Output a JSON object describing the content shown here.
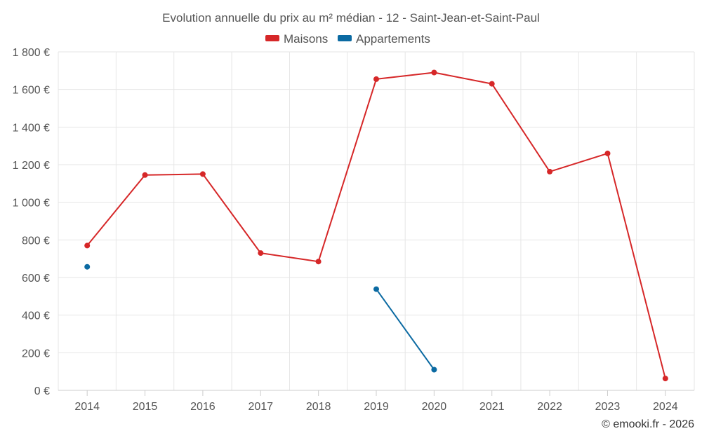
{
  "chart_data": {
    "type": "line",
    "title": "Evolution annuelle du prix au m² médian - 12 - Saint-Jean-et-Saint-Paul",
    "categories": [
      "2014",
      "2015",
      "2016",
      "2017",
      "2018",
      "2019",
      "2020",
      "2021",
      "2022",
      "2023",
      "2024"
    ],
    "series": [
      {
        "name": "Maisons",
        "color": "#d62728",
        "values": [
          770,
          1145,
          1150,
          730,
          685,
          1655,
          1690,
          1630,
          1163,
          1260,
          63
        ]
      },
      {
        "name": "Appartements",
        "color": "#0b6aa2",
        "values": [
          657,
          null,
          null,
          null,
          null,
          538,
          110,
          null,
          null,
          null,
          null
        ]
      }
    ],
    "ylim": [
      0,
      1800
    ],
    "yticks": [
      0,
      200,
      400,
      600,
      800,
      1000,
      1200,
      1400,
      1600,
      1800
    ],
    "ytick_labels": [
      "0 €",
      "200 €",
      "400 €",
      "600 €",
      "800 €",
      "1 000 €",
      "1 200 €",
      "1 400 €",
      "1 600 €",
      "1 800 €"
    ],
    "xlabel": "",
    "ylabel": "",
    "grid": true,
    "legend_position": "top-center",
    "credit": "© emooki.fr - 2026"
  }
}
